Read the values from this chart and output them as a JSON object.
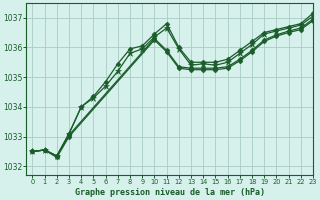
{
  "title": "Graphe pression niveau de la mer (hPa)",
  "bg_color": "#d6f0ec",
  "grid_color": "#a8ccc4",
  "line_color": "#1a5c2a",
  "xlim": [
    -0.5,
    23
  ],
  "ylim": [
    1031.7,
    1037.5
  ],
  "yticks": [
    1032,
    1033,
    1034,
    1035,
    1036,
    1037
  ],
  "xticks": [
    0,
    1,
    2,
    3,
    4,
    5,
    6,
    7,
    8,
    9,
    10,
    11,
    12,
    13,
    14,
    15,
    16,
    17,
    18,
    19,
    20,
    21,
    22,
    23
  ],
  "series": [
    {
      "x": [
        0,
        1,
        2,
        3,
        4,
        5,
        6,
        7,
        8,
        9,
        10,
        11,
        12,
        13,
        14,
        15,
        16,
        17,
        18,
        19,
        20,
        21,
        22,
        23
      ],
      "y": [
        1032.5,
        1032.55,
        1032.35,
        1033.1,
        1034.0,
        1034.35,
        1034.85,
        1035.45,
        1035.95,
        1036.05,
        1036.45,
        1036.8,
        1036.0,
        1035.5,
        1035.5,
        1035.5,
        1035.6,
        1035.9,
        1036.2,
        1036.5,
        1036.6,
        1036.7,
        1036.8,
        1037.15
      ],
      "marker": "D",
      "ms": 2.5
    },
    {
      "x": [
        0,
        1,
        2,
        3,
        4,
        5,
        6,
        7,
        8,
        9,
        10,
        11,
        12,
        13,
        14,
        15,
        16,
        17,
        18,
        19,
        20,
        21,
        22,
        23
      ],
      "y": [
        1032.5,
        1032.55,
        1032.35,
        1033.1,
        1034.0,
        1034.3,
        1034.7,
        1035.2,
        1035.8,
        1035.95,
        1036.35,
        1036.65,
        1035.95,
        1035.4,
        1035.45,
        1035.4,
        1035.5,
        1035.8,
        1036.1,
        1036.45,
        1036.55,
        1036.65,
        1036.75,
        1037.05
      ],
      "marker": "*",
      "ms": 4.5
    },
    {
      "x": [
        0,
        1,
        2,
        3,
        10,
        11,
        12,
        13,
        14,
        15,
        16,
        17,
        18,
        19,
        20,
        21,
        22,
        23
      ],
      "y": [
        1032.5,
        1032.55,
        1032.35,
        1033.05,
        1036.3,
        1035.9,
        1035.35,
        1035.3,
        1035.3,
        1035.3,
        1035.35,
        1035.6,
        1035.9,
        1036.25,
        1036.42,
        1036.55,
        1036.65,
        1036.95
      ],
      "marker": "D",
      "ms": 2.5
    },
    {
      "x": [
        0,
        1,
        2,
        3,
        10,
        11,
        12,
        13,
        14,
        15,
        16,
        17,
        18,
        19,
        20,
        21,
        22,
        23
      ],
      "y": [
        1032.5,
        1032.55,
        1032.3,
        1033.0,
        1036.25,
        1035.85,
        1035.3,
        1035.25,
        1035.25,
        1035.25,
        1035.3,
        1035.55,
        1035.85,
        1036.2,
        1036.38,
        1036.5,
        1036.6,
        1036.9
      ],
      "marker": "D",
      "ms": 2.5
    }
  ]
}
